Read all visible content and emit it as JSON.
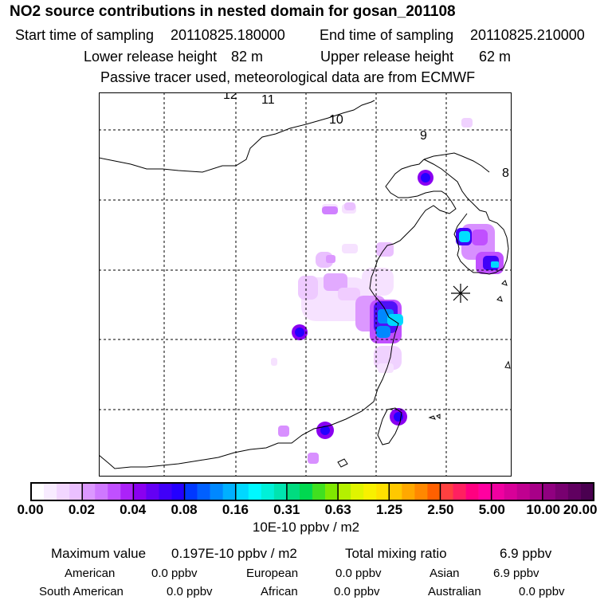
{
  "header": {
    "title": "NO2 source contributions in nested domain for gosan_201108",
    "start_label": "Start time of sampling",
    "start_value": "20110825.180000",
    "end_label": "End time of sampling",
    "end_value": "20110825.210000",
    "lower_label": "Lower release height",
    "lower_value": "82 m",
    "upper_label": "Upper release height",
    "upper_value": "62 m",
    "note": "Passive tracer used, meteorological data are from ECMWF"
  },
  "map": {
    "time_labels": [
      "12",
      "11",
      "10",
      "9",
      "8"
    ],
    "receptor": "gosan"
  },
  "colorbar": {
    "ticks": [
      "0.00",
      "0.02",
      "0.04",
      "0.08",
      "0.16",
      "0.31",
      "0.63",
      "1.25",
      "2.50",
      "5.00",
      "10.00",
      "20.00"
    ],
    "colors": [
      [
        "#ffffff",
        "#f8ecff",
        "#f2d6ff",
        "#eac0ff"
      ],
      [
        "#dc98ff",
        "#cf78ff",
        "#c050ff",
        "#ab22f8"
      ],
      [
        "#8a00f0",
        "#6400f4",
        "#4000f8",
        "#2400ff"
      ],
      [
        "#0038ff",
        "#0060ff",
        "#0088ff",
        "#00b0ff"
      ],
      [
        "#00d8ff",
        "#00f8ff",
        "#00f0d8",
        "#00e4b0"
      ],
      [
        "#00dc80",
        "#00d850",
        "#40e020",
        "#80e800"
      ],
      [
        "#b4f000",
        "#e0f400",
        "#f8f000",
        "#ffe000"
      ],
      [
        "#ffc800",
        "#ffa800",
        "#ff8800",
        "#ff6000"
      ],
      [
        "#ff4040",
        "#ff2060",
        "#ff0080",
        "#ff00a0"
      ],
      [
        "#f000a0",
        "#d80098",
        "#c00090",
        "#a80088"
      ],
      [
        "#900080",
        "#780070",
        "#600060",
        "#4a0050"
      ]
    ],
    "unit": "10E-10 ppbv / m2"
  },
  "stats": {
    "max_label": "Maximum value",
    "max_value": "0.197E-10 ppbv / m2",
    "total_label": "Total mixing ratio",
    "total_value": "6.9 ppbv",
    "regions": [
      {
        "name": "American",
        "value": "0.0 ppbv"
      },
      {
        "name": "European",
        "value": "0.0 ppbv"
      },
      {
        "name": "Asian",
        "value": "6.9 ppbv"
      },
      {
        "name": "South American",
        "value": "0.0 ppbv"
      },
      {
        "name": "African",
        "value": "0.0 ppbv"
      },
      {
        "name": "Australian",
        "value": "0.0 ppbv"
      }
    ]
  }
}
